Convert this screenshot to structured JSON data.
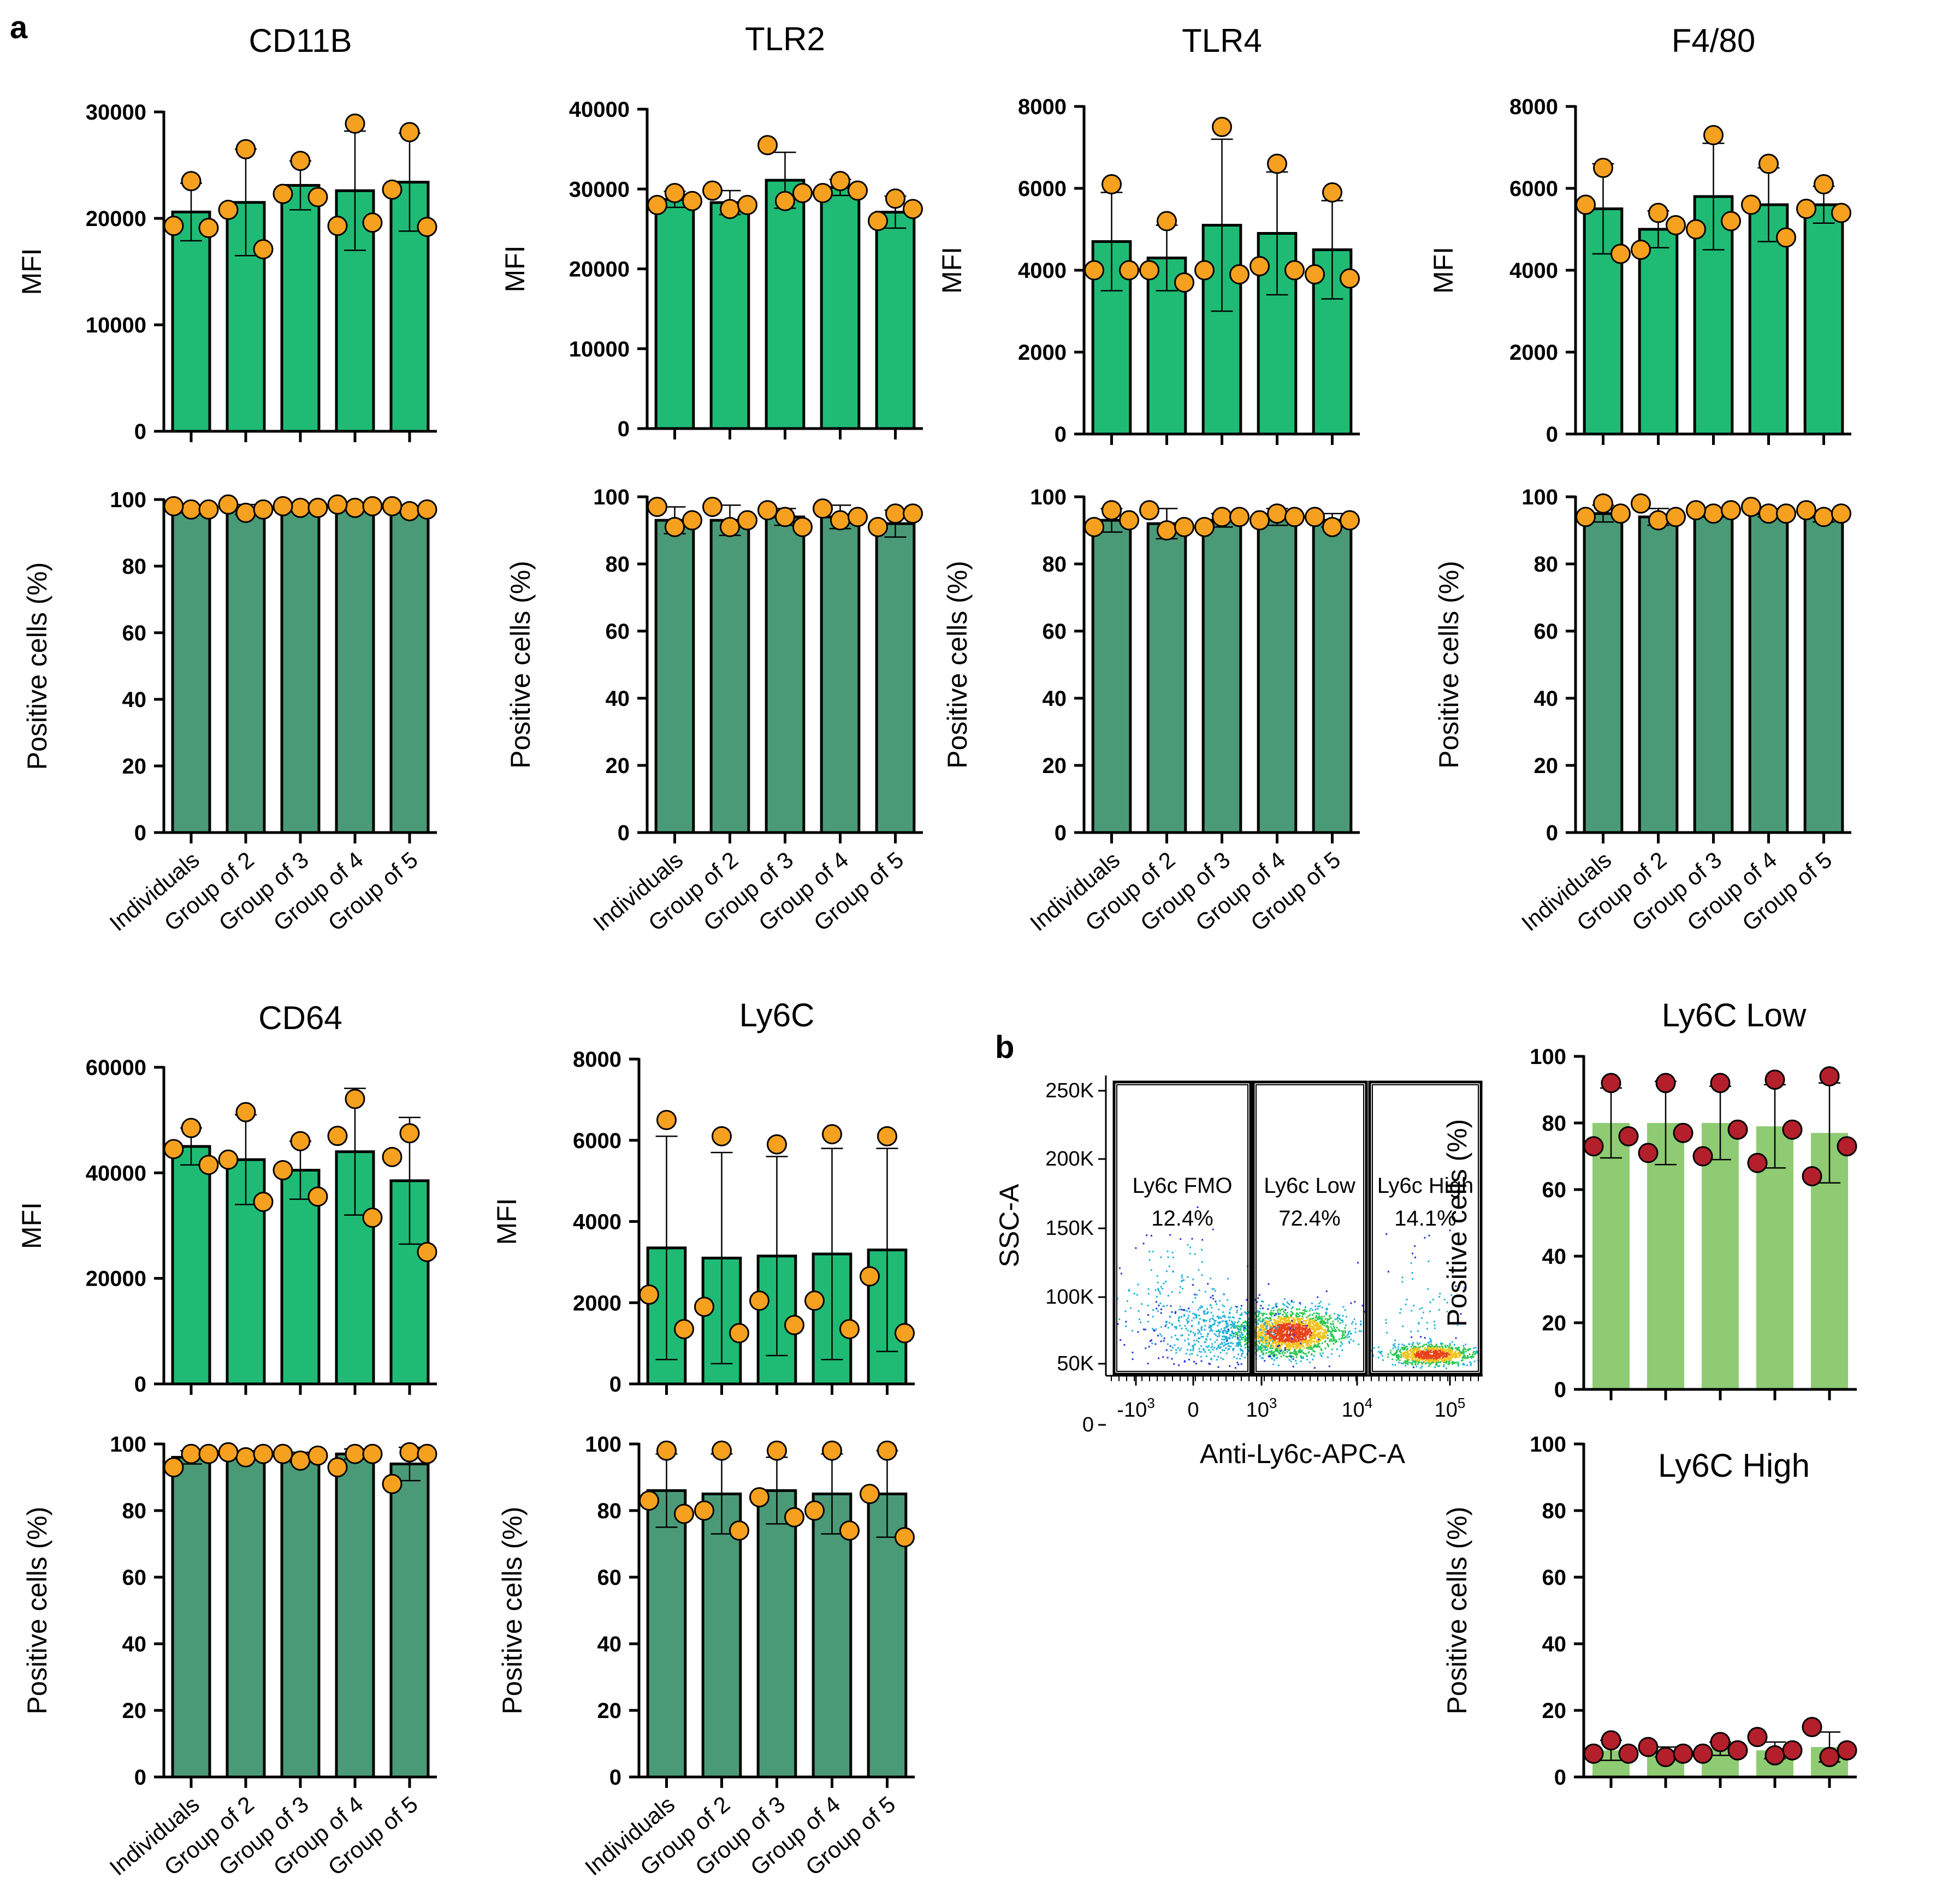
{
  "panel_labels": {
    "a": "a",
    "b": "b"
  },
  "colors": {
    "mfi_bar": "#1fbb74",
    "pct_bar": "#4a9a77",
    "light_bar": "#8ecb72",
    "orange_point": "#f5a01e",
    "red_point": "#b3202b"
  },
  "flow_plot": {
    "ylabel": "SSC-A",
    "xlabel": "Anti-Ly6c-APC-A",
    "yticks": [
      "250K",
      "200K",
      "150K",
      "100K",
      "50K",
      "0"
    ],
    "xticks": [
      {
        "base": "-10",
        "exp": "3"
      },
      {
        "base": "0",
        "exp": ""
      },
      {
        "base": "10",
        "exp": "3"
      },
      {
        "base": "10",
        "exp": "4"
      },
      {
        "base": "10",
        "exp": "5"
      }
    ],
    "gates": [
      {
        "name": "Ly6c FMO",
        "pct": "12.4%"
      },
      {
        "name": "Ly6c Low",
        "pct": "72.4%"
      },
      {
        "name": "Ly6c High",
        "pct": "14.1%"
      }
    ]
  },
  "chart_data": [
    {
      "type": "bar",
      "title": "CD11B",
      "ylabel": "MFI",
      "categories": [
        "Individuals",
        "Group of 2",
        "Group of 3",
        "Group of 4",
        "Group of 5"
      ],
      "ylim": [
        0,
        30000
      ],
      "yticks": [
        0,
        10000,
        20000,
        30000
      ],
      "values": [
        20600,
        21500,
        23100,
        22600,
        23400
      ],
      "sd": [
        2700,
        5000,
        2300,
        5600,
        4600
      ],
      "points": [
        [
          23500,
          19300,
          19100
        ],
        [
          26500,
          20800,
          17100
        ],
        [
          25400,
          22300,
          22000
        ],
        [
          28900,
          19300,
          19600
        ],
        [
          28100,
          22700,
          19200
        ]
      ]
    },
    {
      "type": "bar",
      "title": "",
      "ylabel": "Positive cells (%)",
      "categories": [
        "Individuals",
        "Group of 2",
        "Group of 3",
        "Group of 4",
        "Group of 5"
      ],
      "ylim": [
        0,
        100
      ],
      "yticks": [
        0,
        20,
        40,
        60,
        80,
        100
      ],
      "values": [
        97,
        97,
        98,
        98,
        97
      ],
      "sd": [
        1,
        1.5,
        0.5,
        0.5,
        1
      ],
      "points": [
        [
          97,
          98,
          97
        ],
        [
          96,
          98.5,
          97
        ],
        [
          97.5,
          98,
          97.5
        ],
        [
          97.5,
          98.5,
          98
        ],
        [
          96.5,
          98,
          97
        ]
      ]
    },
    {
      "type": "bar",
      "title": "TLR2",
      "ylabel": "MFI",
      "categories": [
        "Individuals",
        "Group of 2",
        "Group of 3",
        "Group of 4",
        "Group of 5"
      ],
      "ylim": [
        0,
        40000
      ],
      "yticks": [
        0,
        10000,
        20000,
        30000,
        40000
      ],
      "values": [
        28700,
        28300,
        31100,
        30200,
        27100
      ],
      "sd": [
        1000,
        1500,
        3500,
        1000,
        2000
      ],
      "points": [
        [
          29500,
          28000,
          28500
        ],
        [
          27500,
          29800,
          28000
        ],
        [
          28500,
          35500,
          29500
        ],
        [
          31000,
          29500,
          29800
        ],
        [
          28800,
          26000,
          27500
        ]
      ]
    },
    {
      "type": "bar",
      "title": "",
      "ylabel": "Positive cells (%)",
      "categories": [
        "Individuals",
        "Group of 2",
        "Group of 3",
        "Group of 4",
        "Group of 5"
      ],
      "ylim": [
        0,
        100
      ],
      "yticks": [
        0,
        20,
        40,
        60,
        80,
        100
      ],
      "values": [
        93,
        93,
        94,
        94,
        92
      ],
      "sd": [
        4,
        4.5,
        2.5,
        3.5,
        4
      ],
      "points": [
        [
          91,
          97,
          93
        ],
        [
          91,
          97,
          93
        ],
        [
          94,
          96,
          91
        ],
        [
          93,
          96.5,
          94
        ],
        [
          95,
          91,
          95
        ]
      ]
    },
    {
      "type": "bar",
      "title": "TLR4",
      "ylabel": "MFI",
      "categories": [
        "Individuals",
        "Group of 2",
        "Group of 3",
        "Group of 4",
        "Group of 5"
      ],
      "ylim": [
        0,
        8000
      ],
      "yticks": [
        0,
        2000,
        4000,
        6000,
        8000
      ],
      "values": [
        4700,
        4300,
        5100,
        4900,
        4500
      ],
      "sd": [
        1200,
        800,
        2100,
        1500,
        1200
      ],
      "points": [
        [
          6100,
          4000,
          4000
        ],
        [
          5200,
          4000,
          3700
        ],
        [
          7500,
          4000,
          3900
        ],
        [
          6600,
          4100,
          4000
        ],
        [
          5900,
          3900,
          3800
        ]
      ]
    },
    {
      "type": "bar",
      "title": "",
      "ylabel": "Positive cells (%)",
      "categories": [
        "Individuals",
        "Group of 2",
        "Group of 3",
        "Group of 4",
        "Group of 5"
      ],
      "ylim": [
        0,
        100
      ],
      "yticks": [
        0,
        20,
        40,
        60,
        80,
        100
      ],
      "values": [
        93,
        92,
        93,
        94,
        93
      ],
      "sd": [
        3.5,
        4.5,
        2,
        2.5,
        2
      ],
      "points": [
        [
          96,
          91,
          93
        ],
        [
          90,
          96,
          91
        ],
        [
          94,
          91,
          94
        ],
        [
          95,
          93,
          94
        ],
        [
          91,
          94,
          93
        ]
      ]
    },
    {
      "type": "bar",
      "title": "F4/80",
      "ylabel": "MFI",
      "categories": [
        "Individuals",
        "Group of 2",
        "Group of 3",
        "Group of 4",
        "Group of 5"
      ],
      "ylim": [
        0,
        8000
      ],
      "yticks": [
        0,
        2000,
        4000,
        6000,
        8000
      ],
      "values": [
        5500,
        5000,
        5800,
        5600,
        5600
      ],
      "sd": [
        1100,
        450,
        1300,
        900,
        450
      ],
      "points": [
        [
          6500,
          5600,
          4400
        ],
        [
          5400,
          4500,
          5100
        ],
        [
          7300,
          5000,
          5200
        ],
        [
          6600,
          5600,
          4800
        ],
        [
          6100,
          5500,
          5400
        ]
      ]
    },
    {
      "type": "bar",
      "title": "",
      "ylabel": "Positive cells (%)",
      "categories": [
        "Individuals",
        "Group of 2",
        "Group of 3",
        "Group of 4",
        "Group of 5"
      ],
      "ylim": [
        0,
        100
      ],
      "yticks": [
        0,
        20,
        40,
        60,
        80,
        100
      ],
      "values": [
        95,
        94,
        95,
        95,
        94
      ],
      "sd": [
        2.5,
        2.5,
        1,
        1,
        1.5
      ],
      "points": [
        [
          98,
          94,
          95
        ],
        [
          93,
          98,
          94
        ],
        [
          95,
          96,
          96
        ],
        [
          95,
          97,
          95
        ],
        [
          94,
          96,
          95
        ]
      ]
    },
    {
      "type": "bar",
      "title": "CD64",
      "ylabel": "MFI",
      "categories": [
        "Individuals",
        "Group of 2",
        "Group of 3",
        "Group of 4",
        "Group of 5"
      ],
      "ylim": [
        0,
        60000
      ],
      "yticks": [
        0,
        20000,
        40000,
        60000
      ],
      "values": [
        45000,
        42500,
        40500,
        44000,
        38500
      ],
      "sd": [
        3500,
        8500,
        5500,
        12000,
        12000
      ],
      "points": [
        [
          48500,
          44500,
          41500
        ],
        [
          51500,
          42500,
          34500
        ],
        [
          46000,
          40500,
          35500
        ],
        [
          54000,
          47000,
          31500
        ],
        [
          47500,
          43000,
          25000
        ]
      ]
    },
    {
      "type": "bar",
      "title": "",
      "ylabel": "Positive cells (%)",
      "categories": [
        "Individuals",
        "Group of 2",
        "Group of 3",
        "Group of 4",
        "Group of 5"
      ],
      "ylim": [
        0,
        100
      ],
      "yticks": [
        0,
        20,
        40,
        60,
        80,
        100
      ],
      "values": [
        96,
        97,
        96,
        97,
        94
      ],
      "sd": [
        2,
        1,
        1.5,
        1.5,
        5
      ],
      "points": [
        [
          97,
          93,
          97
        ],
        [
          96,
          97.5,
          97
        ],
        [
          95,
          97,
          96.5
        ],
        [
          97,
          93,
          97
        ],
        [
          97.5,
          88,
          97
        ]
      ]
    },
    {
      "type": "bar",
      "title": "Ly6C",
      "ylabel": "MFI",
      "categories": [
        "Individuals",
        "Group of 2",
        "Group of 3",
        "Group of 4",
        "Group of 5"
      ],
      "ylim": [
        0,
        8000
      ],
      "yticks": [
        0,
        2000,
        4000,
        6000,
        8000
      ],
      "values": [
        3350,
        3100,
        3150,
        3200,
        3300
      ],
      "sd": [
        2750,
        2600,
        2450,
        2600,
        2500
      ],
      "points": [
        [
          6500,
          2200,
          1350
        ],
        [
          6100,
          1900,
          1250
        ],
        [
          5900,
          2050,
          1450
        ],
        [
          6150,
          2050,
          1350
        ],
        [
          6100,
          2650,
          1250
        ]
      ]
    },
    {
      "type": "bar",
      "title": "",
      "ylabel": "Positive cells (%)",
      "categories": [
        "Individuals",
        "Group of 2",
        "Group of 3",
        "Group of 4",
        "Group of 5"
      ],
      "ylim": [
        0,
        100
      ],
      "yticks": [
        0,
        20,
        40,
        60,
        80,
        100
      ],
      "values": [
        86,
        85,
        86,
        85,
        85
      ],
      "sd": [
        11,
        12,
        10,
        12,
        13
      ],
      "points": [
        [
          98,
          83,
          79
        ],
        [
          98,
          80,
          74
        ],
        [
          98,
          84,
          78
        ],
        [
          98,
          80,
          74
        ],
        [
          98,
          85,
          72
        ]
      ]
    },
    {
      "type": "bar",
      "title": "Ly6C Low",
      "ylabel": "Positive cells (%)",
      "categories": [
        "",
        "",
        "",
        "",
        ""
      ],
      "ylim": [
        0,
        100
      ],
      "yticks": [
        0,
        20,
        40,
        60,
        80,
        100
      ],
      "values": [
        80,
        80,
        80,
        79,
        77
      ],
      "sd": [
        10.5,
        12.5,
        11,
        12.5,
        15
      ],
      "points": [
        [
          92,
          73,
          76
        ],
        [
          92,
          71,
          77
        ],
        [
          92,
          70,
          78
        ],
        [
          93,
          68,
          78
        ],
        [
          94,
          64,
          73
        ]
      ]
    },
    {
      "type": "bar",
      "title": "Ly6C High",
      "ylabel": "Positive cells (%)",
      "categories": [
        "",
        "",
        "",
        "",
        ""
      ],
      "ylim": [
        0,
        100
      ],
      "yticks": [
        0,
        20,
        40,
        60,
        80,
        100
      ],
      "values": [
        8,
        7.5,
        8.5,
        8,
        9
      ],
      "sd": [
        3,
        1.5,
        2,
        2.5,
        4.5
      ],
      "points": [
        [
          11,
          7,
          7
        ],
        [
          6,
          9,
          7
        ],
        [
          10.5,
          7,
          8
        ],
        [
          6.5,
          12,
          8
        ],
        [
          6,
          15,
          8
        ]
      ]
    }
  ]
}
